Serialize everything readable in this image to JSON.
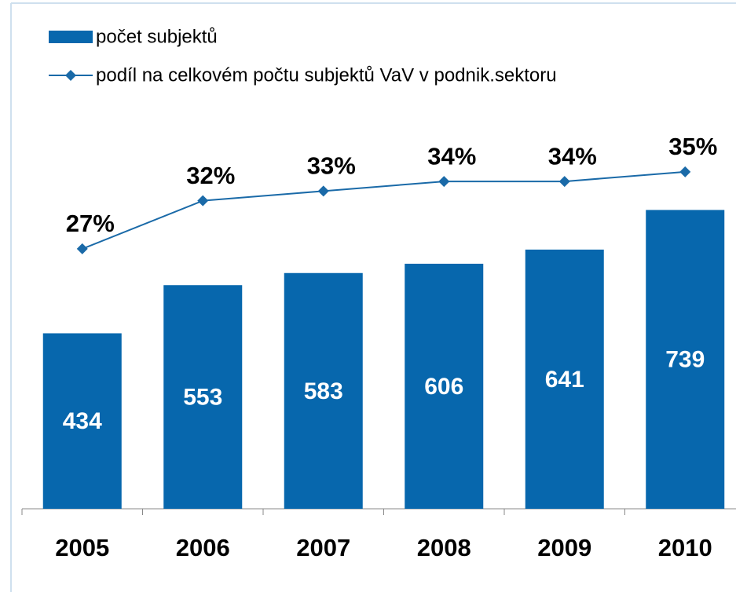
{
  "chart_data": {
    "type": "bar",
    "categories": [
      "2005",
      "2006",
      "2007",
      "2008",
      "2009",
      "2010"
    ],
    "series": [
      {
        "name": "počet subjektů",
        "type": "bar",
        "color": "#0767ad",
        "values": [
          434,
          553,
          583,
          606,
          641,
          739
        ]
      },
      {
        "name": "podíl na celkovém počtu subjektů VaV v podnik.sektoru",
        "type": "line",
        "axis": "y2",
        "color": "#1a6aa8",
        "values": [
          27,
          32,
          33,
          34,
          34,
          35
        ],
        "value_labels": [
          "27%",
          "32%",
          "33%",
          "34%",
          "34%",
          "35%"
        ]
      }
    ],
    "ylim": [
      0,
      1000
    ],
    "y2lim": [
      0,
      42
    ],
    "legend": "top-left"
  }
}
